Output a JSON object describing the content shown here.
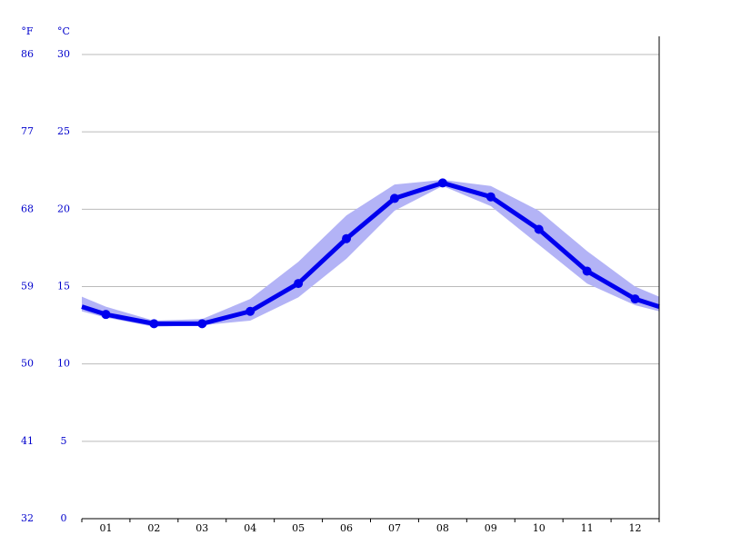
{
  "chart_data": {
    "type": "line",
    "y_label": "°C",
    "y2_label": "°F",
    "categories": [
      "01",
      "02",
      "03",
      "04",
      "05",
      "06",
      "07",
      "08",
      "09",
      "10",
      "11",
      "12"
    ],
    "series": [
      {
        "color": "#0000ee",
        "values": [
          13.2,
          12.6,
          12.6,
          13.4,
          15.2,
          18.1,
          20.7,
          21.7,
          20.8,
          18.7,
          16.0,
          14.2
        ]
      }
    ],
    "band": {
      "color": "#b3b3f6",
      "upper": [
        13.7,
        12.8,
        12.9,
        14.2,
        16.6,
        19.6,
        21.6,
        21.9,
        21.5,
        19.9,
        17.3,
        15.0
      ],
      "lower": [
        13.0,
        12.4,
        12.5,
        12.8,
        14.3,
        16.8,
        19.9,
        21.5,
        20.2,
        17.7,
        15.2,
        13.8
      ]
    },
    "ylim": [
      0,
      30
    ],
    "yticks": [
      0,
      5,
      10,
      15,
      20,
      25,
      30
    ],
    "y2lim": [
      32,
      86
    ],
    "y2ticks": [
      32,
      41,
      50,
      59,
      68,
      77,
      86
    ],
    "grid": true
  }
}
